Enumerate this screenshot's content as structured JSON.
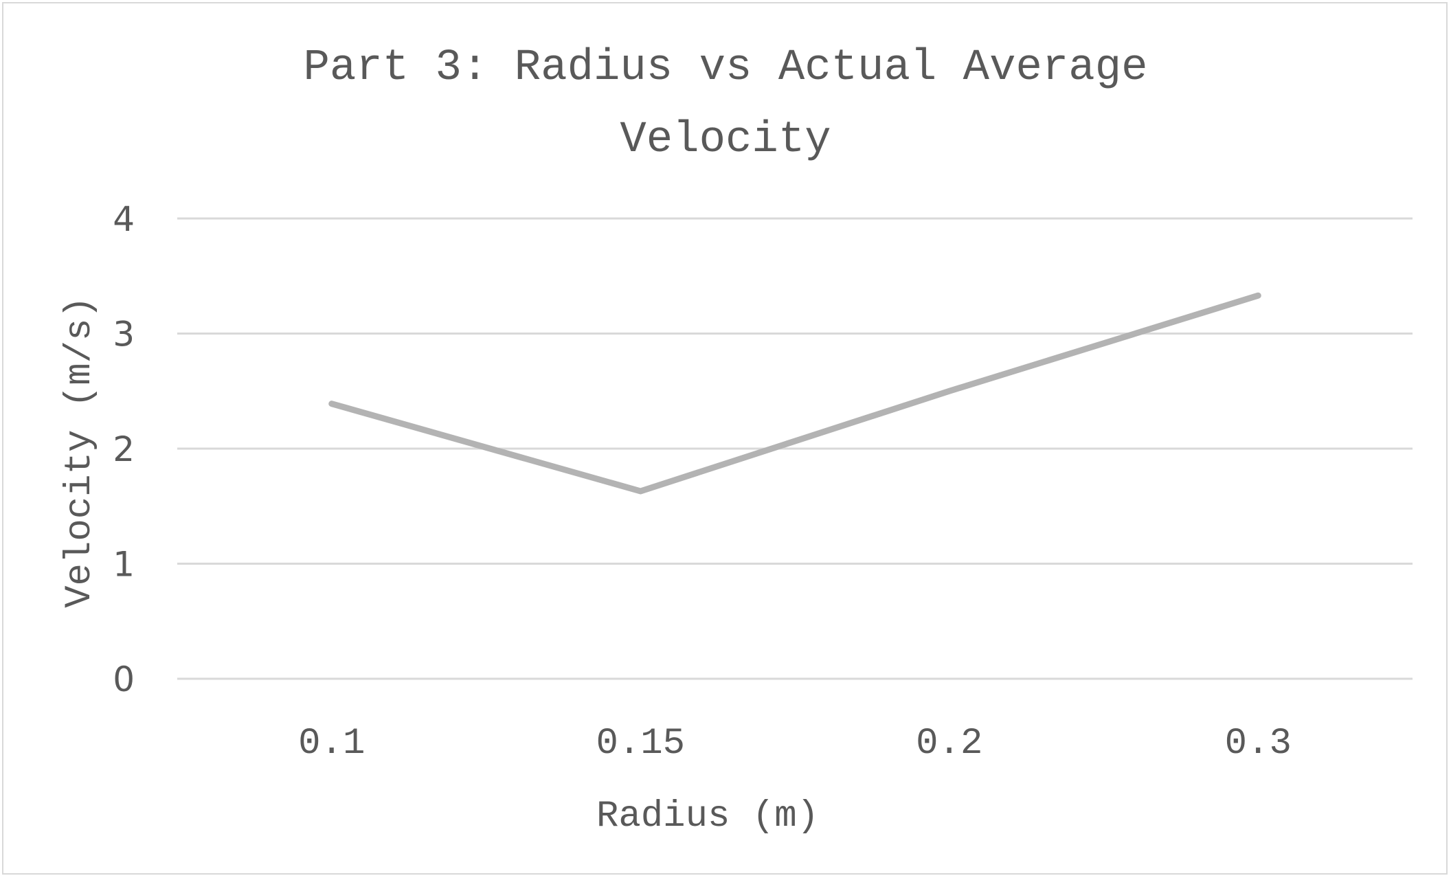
{
  "chart_data": {
    "type": "line",
    "title_lines": [
      "Part 3: Radius vs Actual Average",
      "Velocity"
    ],
    "xlabel": "Radius (m)",
    "ylabel": "Velocity (m/s)",
    "categories": [
      "0.1",
      "0.15",
      "0.2",
      "0.3"
    ],
    "series": [
      {
        "values": [
          2.39,
          1.63,
          2.5,
          3.33
        ]
      }
    ],
    "ylim": [
      0,
      4
    ],
    "yticks": [
      "0",
      "1",
      "2",
      "3",
      "4"
    ],
    "grid": true,
    "legend": "none",
    "colors": {
      "series": "#b3b3b3",
      "grid": "#d9d9d9",
      "text": "#595959",
      "border": "#d9d9d9"
    }
  }
}
